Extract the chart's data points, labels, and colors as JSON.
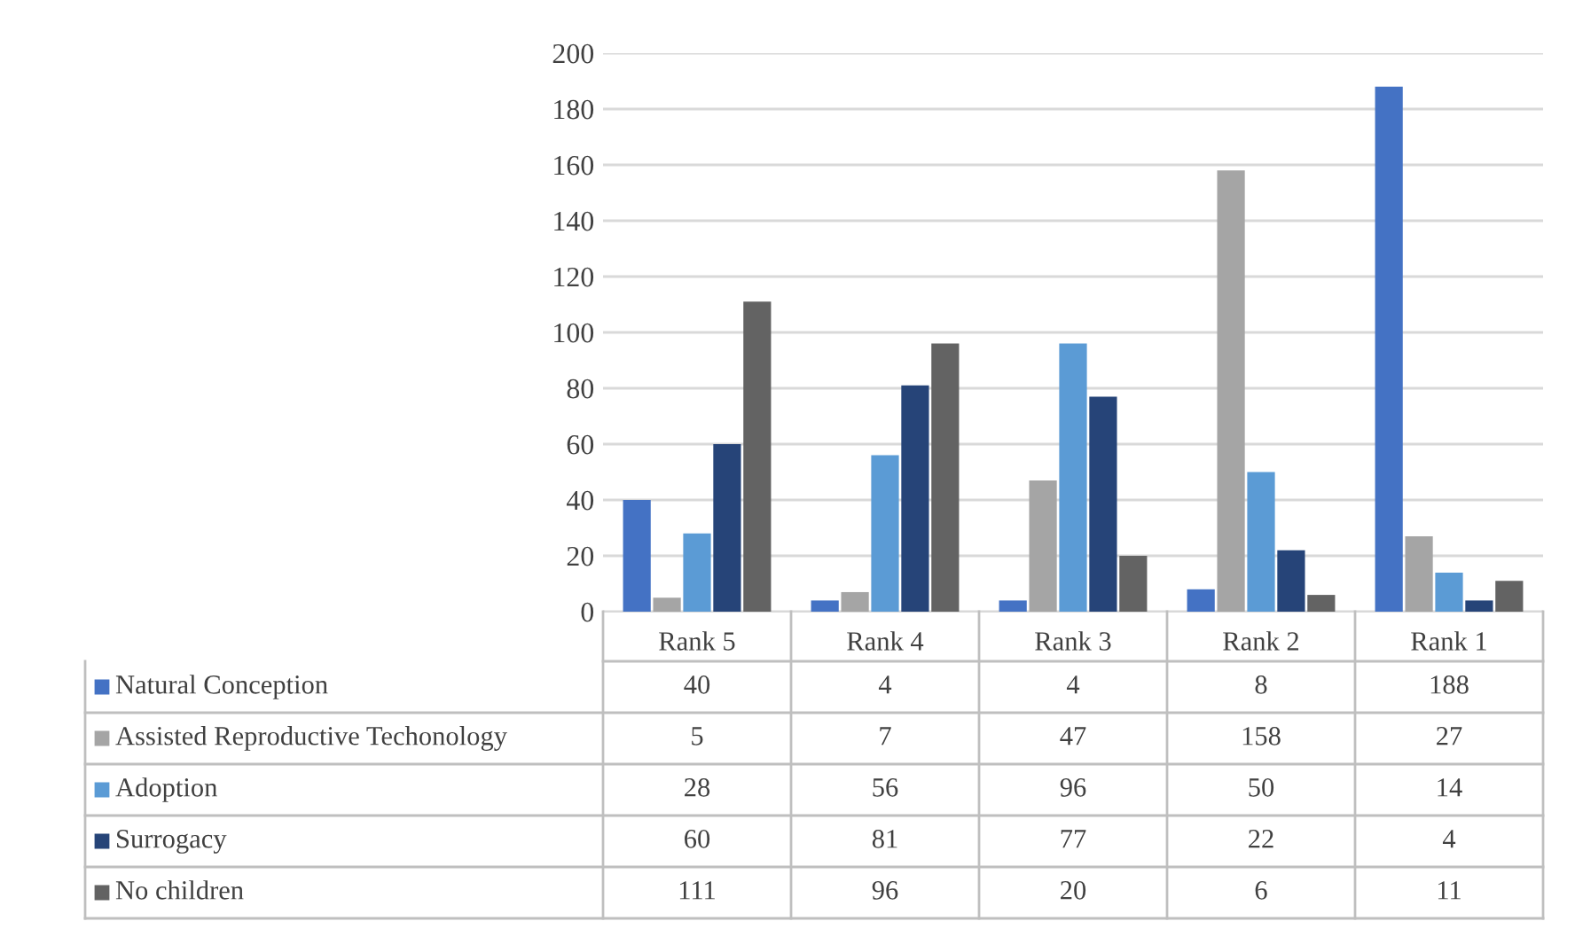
{
  "chart_data": {
    "type": "bar",
    "categories": [
      "Rank 5",
      "Rank 4",
      "Rank 3",
      "Rank 2",
      "Rank 1"
    ],
    "series": [
      {
        "name": "Natural Conception",
        "color": "#4472c4",
        "values": [
          40,
          4,
          4,
          8,
          188
        ]
      },
      {
        "name": "Assisted Reproductive Techonology",
        "color": "#a5a5a5",
        "values": [
          5,
          7,
          47,
          158,
          27
        ]
      },
      {
        "name": "Adoption",
        "color": "#5b9bd5",
        "values": [
          28,
          56,
          96,
          50,
          14
        ]
      },
      {
        "name": "Surrogacy",
        "color": "#264478",
        "values": [
          60,
          81,
          77,
          22,
          4
        ]
      },
      {
        "name": "No children",
        "color": "#636363",
        "values": [
          111,
          96,
          20,
          6,
          11
        ]
      }
    ],
    "ylim": [
      0,
      200
    ],
    "yticks": [
      0,
      20,
      40,
      60,
      80,
      100,
      120,
      140,
      160,
      180,
      200
    ],
    "grid": "y",
    "legend": "bottom",
    "data_labels": true
  }
}
